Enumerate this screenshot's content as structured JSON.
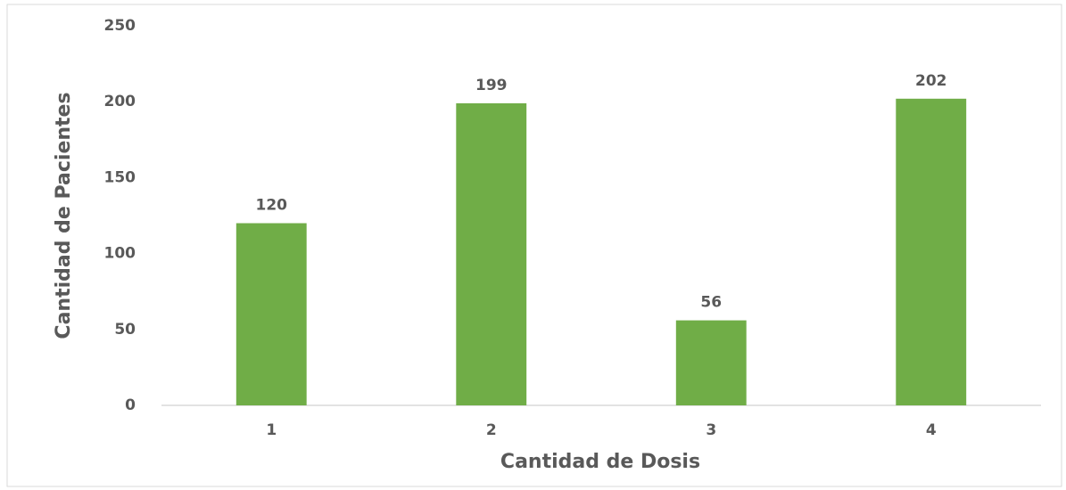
{
  "chart_data": {
    "type": "bar",
    "x_label": "Cantidad de Dosis",
    "y_label": "Cantidad de Pacientes",
    "categories": [
      "1",
      "2",
      "3",
      "4"
    ],
    "values": [
      120,
      199,
      56,
      202
    ],
    "color": "#70ad47",
    "ylim": [
      0,
      250
    ],
    "yticks": [
      0,
      50,
      100,
      150,
      200,
      250
    ],
    "grid": false
  }
}
